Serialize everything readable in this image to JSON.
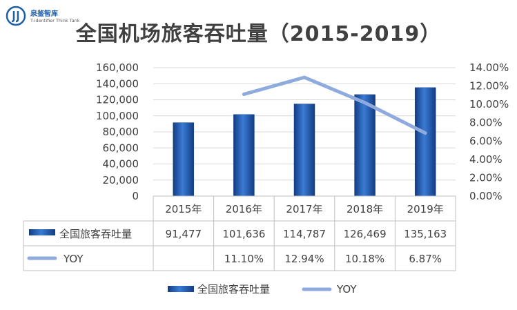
{
  "brand": {
    "name": "泉鉴智库",
    "tagline": "T-identifier Think Tank"
  },
  "title": "全国机场旅客吞吐量（2015-2019）",
  "colors": {
    "bar": "#2563b6",
    "bar_dark": "#123d82",
    "line": "#8faadc",
    "grid": "#d9d9d9",
    "border": "#bfbfbf",
    "brand": "#1e5fa8"
  },
  "chart_data": {
    "type": "bar",
    "title": "全国机场旅客吞吐量（2015-2019）",
    "categories": [
      "2015年",
      "2016年",
      "2017年",
      "2018年",
      "2019年"
    ],
    "series": [
      {
        "name": "全国旅客吞吐量",
        "type": "bar",
        "axis": "left",
        "values": [
          91477,
          101636,
          114787,
          126469,
          135163
        ],
        "labels": [
          "91,477",
          "101,636",
          "114,787",
          "126,469",
          "135,163"
        ]
      },
      {
        "name": "YOY",
        "type": "line",
        "axis": "right",
        "values": [
          null,
          11.1,
          12.94,
          10.18,
          6.87
        ],
        "labels": [
          "",
          "11.10%",
          "12.94%",
          "10.18%",
          "6.87%"
        ]
      }
    ],
    "y_left": {
      "range": [
        0,
        160000
      ],
      "ticks": [
        0,
        20000,
        40000,
        60000,
        80000,
        100000,
        120000,
        140000,
        160000
      ],
      "tick_labels": [
        "0",
        "20,000",
        "40,000",
        "60,000",
        "80,000",
        "100,000",
        "120,000",
        "140,000",
        "160,000"
      ]
    },
    "y_right": {
      "range": [
        0,
        14
      ],
      "ticks": [
        0,
        2,
        4,
        6,
        8,
        10,
        12,
        14
      ],
      "tick_labels": [
        "0.00%",
        "2.00%",
        "4.00%",
        "6.00%",
        "8.00%",
        "10.00%",
        "12.00%",
        "14.00%"
      ]
    },
    "grid": true,
    "data_table": true,
    "legend_position": "bottom"
  }
}
